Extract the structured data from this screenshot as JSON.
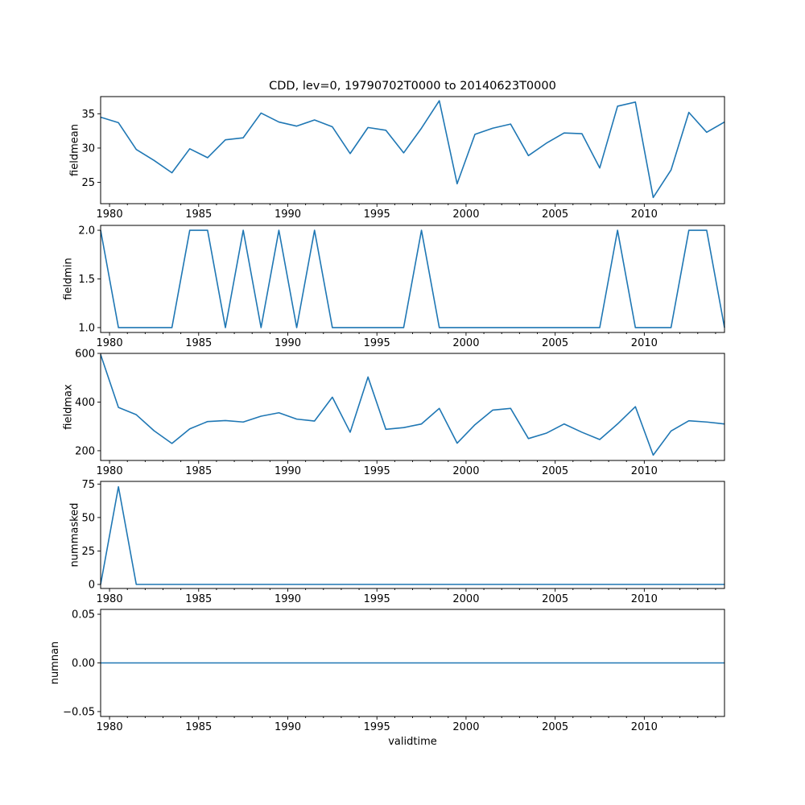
{
  "chart_data": [
    {
      "type": "line",
      "title": "CDD, lev=0, 19790702T0000 to 20140623T0000",
      "ylabel": "fieldmean",
      "xlabel": "",
      "ylim": [
        21.9,
        37.5
      ],
      "yticks": [
        25,
        30,
        35
      ],
      "ytick_labels": [
        "25",
        "30",
        "35"
      ],
      "xlim": [
        1979.5,
        2014.5
      ],
      "xticks": [
        1980,
        1985,
        1990,
        1995,
        2000,
        2005,
        2010
      ],
      "xtick_labels": [
        "1980",
        "1985",
        "1990",
        "1995",
        "2000",
        "2005",
        "2010"
      ],
      "x": [
        1979.5,
        1980.5,
        1981.5,
        1982.5,
        1983.5,
        1984.5,
        1985.5,
        1986.5,
        1987.5,
        1988.5,
        1989.5,
        1990.5,
        1991.5,
        1992.5,
        1993.5,
        1994.5,
        1995.5,
        1996.5,
        1997.5,
        1998.5,
        1999.5,
        2000.5,
        2001.5,
        2002.5,
        2003.5,
        2004.5,
        2005.5,
        2006.5,
        2007.5,
        2008.5,
        2009.5,
        2010.5,
        2011.5,
        2012.5,
        2013.5,
        2014.5
      ],
      "series": [
        {
          "values": [
            34.5,
            33.7,
            29.8,
            28.2,
            26.4,
            29.9,
            28.6,
            31.2,
            31.5,
            35.1,
            33.8,
            33.2,
            34.1,
            33.1,
            29.2,
            33.0,
            32.6,
            29.3,
            32.9,
            36.9,
            24.8,
            32.0,
            32.9,
            33.5,
            28.9,
            30.7,
            32.2,
            32.1,
            27.1,
            36.1,
            36.7,
            22.8,
            26.8,
            35.2,
            32.3,
            33.8
          ]
        }
      ],
      "grid": false,
      "color": "#1f77b4"
    },
    {
      "type": "line",
      "title": "",
      "ylabel": "fieldmin",
      "xlabel": "",
      "ylim": [
        0.95,
        2.05
      ],
      "yticks": [
        1.0,
        1.5,
        2.0
      ],
      "ytick_labels": [
        "1.0",
        "1.5",
        "2.0"
      ],
      "xlim": [
        1979.5,
        2014.5
      ],
      "xticks": [
        1980,
        1985,
        1990,
        1995,
        2000,
        2005,
        2010
      ],
      "xtick_labels": [
        "1980",
        "1985",
        "1990",
        "1995",
        "2000",
        "2005",
        "2010"
      ],
      "x": [
        1979.5,
        1980.5,
        1981.5,
        1982.5,
        1983.5,
        1984.5,
        1985.5,
        1986.5,
        1987.5,
        1988.5,
        1989.5,
        1990.5,
        1991.5,
        1992.5,
        1993.5,
        1994.5,
        1995.5,
        1996.5,
        1997.5,
        1998.5,
        1999.5,
        2000.5,
        2001.5,
        2002.5,
        2003.5,
        2004.5,
        2005.5,
        2006.5,
        2007.5,
        2008.5,
        2009.5,
        2010.5,
        2011.5,
        2012.5,
        2013.5,
        2014.5
      ],
      "series": [
        {
          "values": [
            2,
            1,
            1,
            1,
            1,
            2,
            2,
            1,
            2,
            1,
            2,
            1,
            2,
            1,
            1,
            1,
            1,
            1,
            2,
            1,
            1,
            1,
            1,
            1,
            1,
            1,
            1,
            1,
            1,
            2,
            1,
            1,
            1,
            2,
            2,
            1
          ]
        }
      ],
      "grid": false,
      "color": "#1f77b4"
    },
    {
      "type": "line",
      "title": "",
      "ylabel": "fieldmax",
      "xlabel": "",
      "ylim": [
        160,
        600
      ],
      "yticks": [
        200,
        400,
        600
      ],
      "ytick_labels": [
        "200",
        "400",
        "600"
      ],
      "xlim": [
        1979.5,
        2014.5
      ],
      "xticks": [
        1980,
        1985,
        1990,
        1995,
        2000,
        2005,
        2010
      ],
      "xtick_labels": [
        "1980",
        "1985",
        "1990",
        "1995",
        "2000",
        "2005",
        "2010"
      ],
      "x": [
        1979.5,
        1980.5,
        1981.5,
        1982.5,
        1983.5,
        1984.5,
        1985.5,
        1986.5,
        1987.5,
        1988.5,
        1989.5,
        1990.5,
        1991.5,
        1992.5,
        1993.5,
        1994.5,
        1995.5,
        1996.5,
        1997.5,
        1998.5,
        1999.5,
        2000.5,
        2001.5,
        2002.5,
        2003.5,
        2004.5,
        2005.5,
        2006.5,
        2007.5,
        2008.5,
        2009.5,
        2010.5,
        2011.5,
        2012.5,
        2013.5,
        2014.5
      ],
      "series": [
        {
          "values": [
            595,
            378,
            348,
            282,
            230,
            290,
            320,
            324,
            318,
            342,
            356,
            330,
            322,
            420,
            276,
            503,
            288,
            295,
            310,
            374,
            231,
            307,
            367,
            374,
            250,
            272,
            310,
            276,
            246,
            310,
            381,
            182,
            281,
            323,
            318,
            310
          ]
        }
      ],
      "grid": false,
      "color": "#1f77b4"
    },
    {
      "type": "line",
      "title": "",
      "ylabel": "nummasked",
      "xlabel": "",
      "ylim": [
        -3,
        77
      ],
      "yticks": [
        0,
        25,
        50,
        75
      ],
      "ytick_labels": [
        "0",
        "25",
        "50",
        "75"
      ],
      "xlim": [
        1979.5,
        2014.5
      ],
      "xticks": [
        1980,
        1985,
        1990,
        1995,
        2000,
        2005,
        2010
      ],
      "xtick_labels": [
        "1980",
        "1985",
        "1990",
        "1995",
        "2000",
        "2005",
        "2010"
      ],
      "x": [
        1979.5,
        1980.5,
        1981.5,
        1982.5,
        1983.5,
        1984.5,
        1985.5,
        1986.5,
        1987.5,
        1988.5,
        1989.5,
        1990.5,
        1991.5,
        1992.5,
        1993.5,
        1994.5,
        1995.5,
        1996.5,
        1997.5,
        1998.5,
        1999.5,
        2000.5,
        2001.5,
        2002.5,
        2003.5,
        2004.5,
        2005.5,
        2006.5,
        2007.5,
        2008.5,
        2009.5,
        2010.5,
        2011.5,
        2012.5,
        2013.5,
        2014.5
      ],
      "series": [
        {
          "values": [
            0,
            73,
            0,
            0,
            0,
            0,
            0,
            0,
            0,
            0,
            0,
            0,
            0,
            0,
            0,
            0,
            0,
            0,
            0,
            0,
            0,
            0,
            0,
            0,
            0,
            0,
            0,
            0,
            0,
            0,
            0,
            0,
            0,
            0,
            0,
            0
          ]
        }
      ],
      "grid": false,
      "color": "#1f77b4"
    },
    {
      "type": "line",
      "title": "",
      "ylabel": "numnan",
      "xlabel": "validtime",
      "ylim": [
        -0.055,
        0.055
      ],
      "yticks": [
        -0.05,
        0.0,
        0.05
      ],
      "ytick_labels": [
        "−0.05",
        "0.00",
        "0.05"
      ],
      "xlim": [
        1979.5,
        2014.5
      ],
      "xticks": [
        1980,
        1985,
        1990,
        1995,
        2000,
        2005,
        2010
      ],
      "xtick_labels": [
        "1980",
        "1985",
        "1990",
        "1995",
        "2000",
        "2005",
        "2010"
      ],
      "x": [
        1979.5,
        1980.5,
        1981.5,
        1982.5,
        1983.5,
        1984.5,
        1985.5,
        1986.5,
        1987.5,
        1988.5,
        1989.5,
        1990.5,
        1991.5,
        1992.5,
        1993.5,
        1994.5,
        1995.5,
        1996.5,
        1997.5,
        1998.5,
        1999.5,
        2000.5,
        2001.5,
        2002.5,
        2003.5,
        2004.5,
        2005.5,
        2006.5,
        2007.5,
        2008.5,
        2009.5,
        2010.5,
        2011.5,
        2012.5,
        2013.5,
        2014.5
      ],
      "series": [
        {
          "values": [
            0,
            0,
            0,
            0,
            0,
            0,
            0,
            0,
            0,
            0,
            0,
            0,
            0,
            0,
            0,
            0,
            0,
            0,
            0,
            0,
            0,
            0,
            0,
            0,
            0,
            0,
            0,
            0,
            0,
            0,
            0,
            0,
            0,
            0,
            0,
            0
          ]
        }
      ],
      "grid": false,
      "color": "#1f77b4"
    }
  ]
}
